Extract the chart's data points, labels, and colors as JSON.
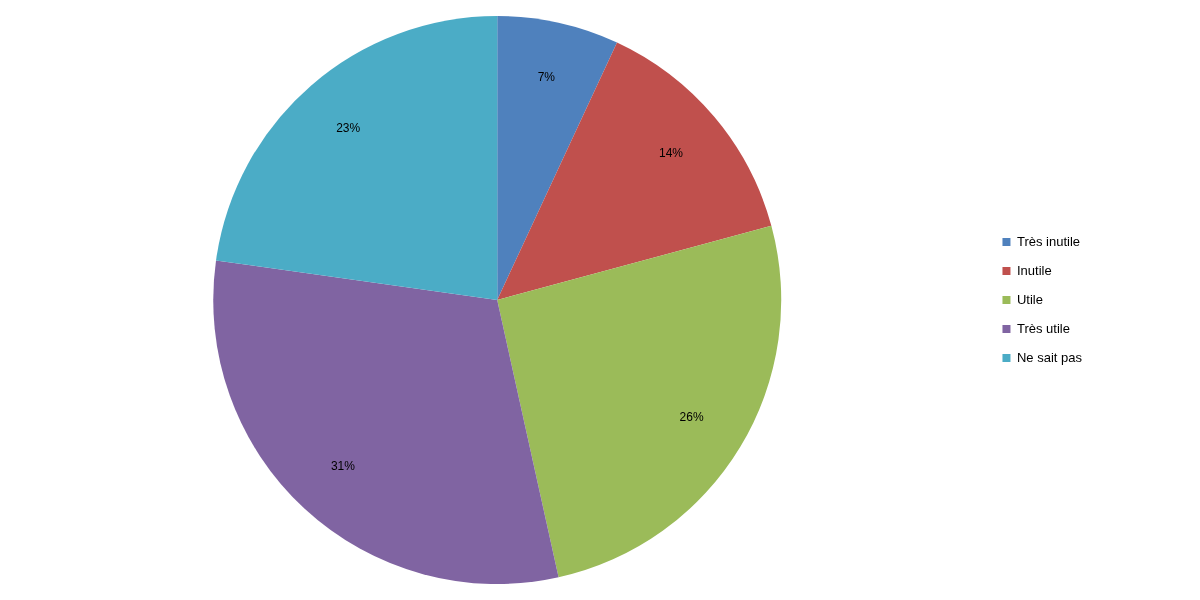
{
  "chart_data": {
    "type": "pie",
    "categories": [
      "Très inutile",
      "Inutile",
      "Utile",
      "Très utile",
      "Ne sait pas"
    ],
    "values": [
      7,
      14,
      26,
      31,
      23
    ],
    "colors": [
      "#4f81bd",
      "#c0504d",
      "#9bbb59",
      "#8064a2",
      "#4bacc6"
    ],
    "value_labels": [
      "7%",
      "14%",
      "26%",
      "31%",
      "23%"
    ],
    "legend": "right"
  }
}
